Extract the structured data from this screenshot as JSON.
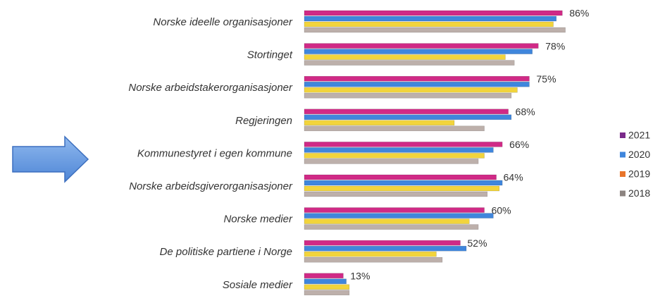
{
  "chart_data": {
    "type": "hbar",
    "categories": [
      "Norske ideelle organisasjoner",
      "Stortinget",
      "Norske arbeidstakerorganisasjoner",
      "Regjeringen",
      "Kommunestyret i egen kommune",
      "Norske arbeidsgiverorganisasjoner",
      "Norske medier",
      "De politiske partiene i Norge",
      "Sosiale medier"
    ],
    "series": [
      {
        "name": "2021",
        "color": "#d02a86",
        "legend_color": "#7a2a8a",
        "values": [
          86,
          78,
          75,
          68,
          66,
          64,
          60,
          52,
          13
        ],
        "value_labels": [
          "86%",
          "78%",
          "75%",
          "68%",
          "66%",
          "64%",
          "60%",
          "52%",
          "13%"
        ]
      },
      {
        "name": "2020",
        "color": "#3f86dc",
        "values": [
          84,
          76,
          75,
          69,
          63,
          66,
          63,
          54,
          14
        ]
      },
      {
        "name": "2019",
        "color": "#f2d43c",
        "legend_color": "#e8742a",
        "values": [
          83,
          67,
          71,
          50,
          60,
          65,
          55,
          44,
          15
        ]
      },
      {
        "name": "2018",
        "color": "#bdb0ab",
        "legend_color": "#8c8480",
        "values": [
          87,
          70,
          69,
          60,
          58,
          61,
          58,
          46,
          15
        ]
      }
    ],
    "xlim": [
      0,
      100
    ],
    "legend": "right"
  }
}
